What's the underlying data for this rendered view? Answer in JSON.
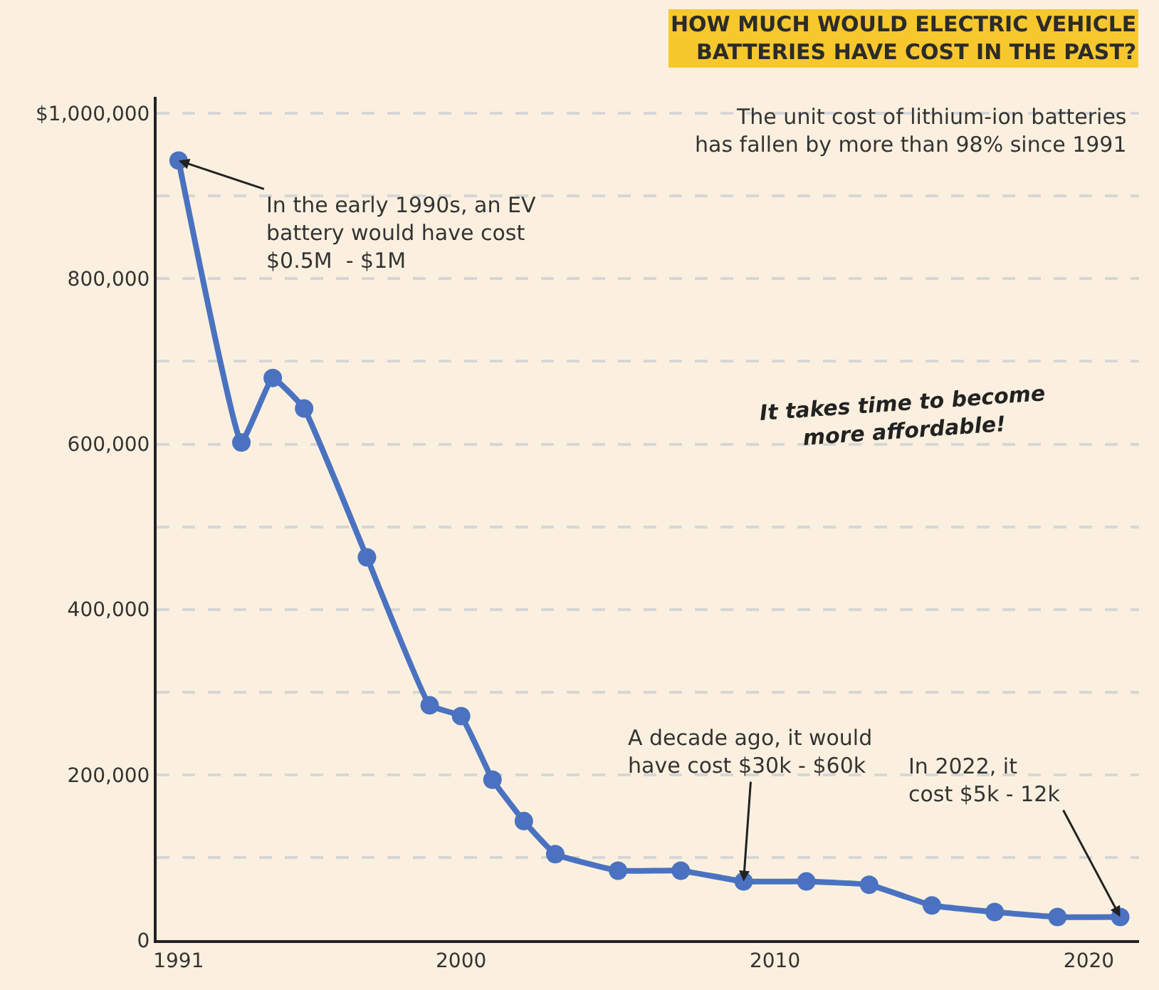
{
  "chart_data": {
    "type": "line",
    "title": "HOW MUCH WOULD ELECTRIC VEHICLE\nBATTERIES HAVE COST IN THE PAST?",
    "subtitle": "The unit cost of lithium-ion batteries\nhas fallen by more than 98% since 1991",
    "x": [
      1991,
      1993,
      1994,
      1995,
      1997,
      1999,
      2000,
      2001,
      2002,
      2003,
      2005,
      2007,
      2009,
      2011,
      2013,
      2015,
      2017,
      2019,
      2021
    ],
    "series": [
      {
        "color": "#4a72c0",
        "values": [
          943000,
          602000,
          680000,
          643000,
          463000,
          284000,
          271000,
          194000,
          144000,
          104000,
          84000,
          84000,
          71000,
          71000,
          67000,
          42000,
          34000,
          28000,
          28000
        ]
      }
    ],
    "xlim": [
      1990.3,
      2021.6
    ],
    "xticks": [
      1991,
      2000,
      2010,
      2020
    ],
    "ylim": [
      0,
      1020000
    ],
    "yticks": [
      {
        "value": 0,
        "label": "0"
      },
      {
        "value": 100000,
        "label": null
      },
      {
        "value": 200000,
        "label": "200,000"
      },
      {
        "value": 300000,
        "label": null
      },
      {
        "value": 400000,
        "label": "400,000"
      },
      {
        "value": 500000,
        "label": null
      },
      {
        "value": 600000,
        "label": "600,000"
      },
      {
        "value": 700000,
        "label": null
      },
      {
        "value": 800000,
        "label": "800,000"
      },
      {
        "value": 900000,
        "label": null
      },
      {
        "value": 1000000,
        "label": "$1,000,000"
      }
    ],
    "grid": "y",
    "marker": "circle",
    "line_style": "solid",
    "annotations": [
      {
        "text": "In the early 1990s, an EV\nbattery would have cost\n$0.5M  - $1M",
        "x": 1991,
        "y": 943000
      },
      {
        "text": "A decade ago, it would\nhave cost $30k - $60k",
        "x": 2009,
        "y": 71000
      },
      {
        "text": "In 2022, it\ncost $5k - 12k",
        "x": 2021,
        "y": 28000
      },
      "It takes time to become\nmore affordable!"
    ]
  }
}
